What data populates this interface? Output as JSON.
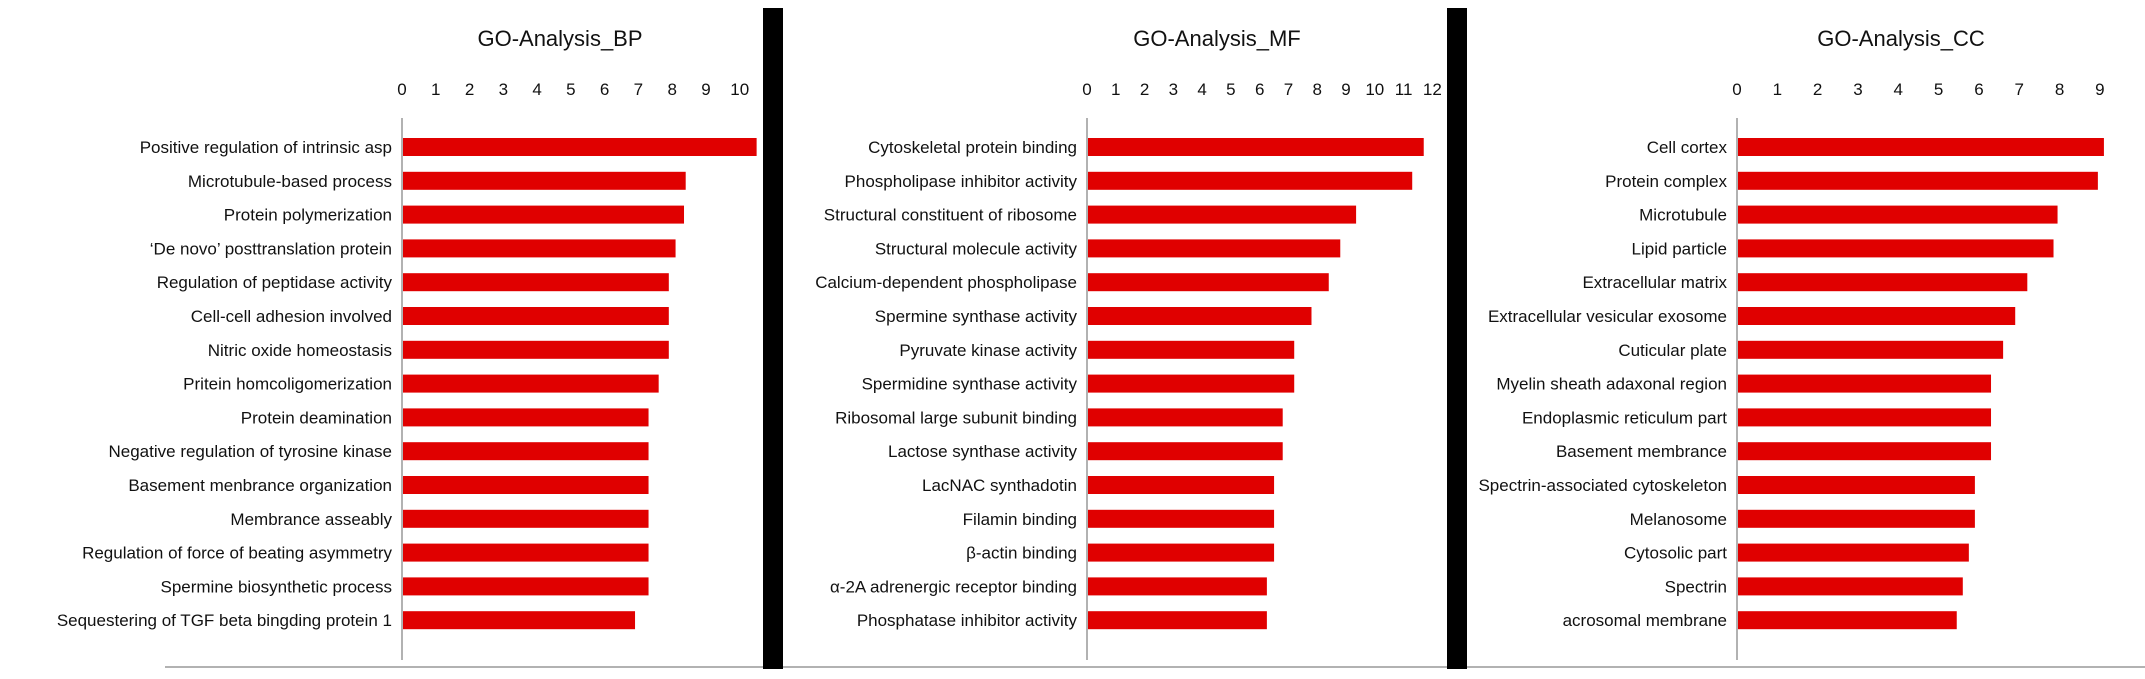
{
  "colors": {
    "bar": "#e00000",
    "divider": "#000000",
    "axis": "#999999",
    "text": "#111111"
  },
  "chart_data": [
    {
      "type": "bar",
      "orientation": "horizontal",
      "title": "GO-Analysis_BP",
      "xlim": [
        0,
        10.6
      ],
      "ticks": [
        "0",
        "1",
        "2",
        "3",
        "4",
        "5",
        "6",
        "7",
        "8",
        "9",
        "10"
      ],
      "tick_values": [
        0,
        1,
        2,
        3,
        4,
        5,
        6,
        7,
        8,
        9,
        10
      ],
      "categories": [
        "Positive regulation of intrinsic asp",
        "Microtubule-based process",
        "Protein polymerization",
        "‘De novo’ posttranslation protein",
        "Regulation of peptidase activity",
        "Cell-cell adhesion involved",
        "Nitric oxide homeostasis",
        "Pritein homcoligomerization",
        "Protein deamination",
        "Negative regulation of tyrosine kinase",
        "Basement menbrance organization",
        "Membrance asseably",
        "Regulation of force of beating asymmetry",
        "Spermine biosynthetic process",
        "Sequestering of TGF beta bingding protein 1"
      ],
      "values": [
        10.5,
        8.4,
        8.35,
        8.1,
        7.9,
        7.9,
        7.9,
        7.6,
        7.3,
        7.3,
        7.3,
        7.3,
        7.3,
        7.3,
        6.9
      ]
    },
    {
      "type": "bar",
      "orientation": "horizontal",
      "title": "GO-Analysis_MF",
      "xlim": [
        0,
        12.3
      ],
      "ticks": [
        "0",
        "1",
        "2",
        "3",
        "4",
        "5",
        "6",
        "7",
        "8",
        "9",
        "10",
        "11",
        "12"
      ],
      "tick_values": [
        0,
        1,
        2,
        3,
        4,
        5,
        6,
        7,
        8,
        9,
        10,
        11,
        12
      ],
      "categories": [
        "Cytoskeletal protein binding",
        "Phospholipase inhibitor activity",
        "Structural constituent of ribosome",
        "Structural molecule activity",
        "Calcium-dependent phospholipase",
        "Spermine synthase activity",
        "Pyruvate kinase activity",
        "Spermidine synthase activity",
        "Ribosomal large subunit binding",
        "Lactose synthase activity",
        "LacNAC synthadotin",
        "Filamin binding",
        "β-actin binding",
        "α-2A adrenergic receptor binding",
        "Phosphatase inhibitor activity"
      ],
      "values": [
        11.7,
        11.3,
        9.35,
        8.8,
        8.4,
        7.8,
        7.2,
        7.2,
        6.8,
        6.8,
        6.5,
        6.5,
        6.5,
        6.25,
        6.25
      ]
    },
    {
      "type": "bar",
      "orientation": "horizontal",
      "title": "GO-Analysis_CC",
      "xlim": [
        0,
        9.35
      ],
      "ticks": [
        "0",
        "1",
        "2",
        "3",
        "4",
        "5",
        "6",
        "7",
        "8",
        "9"
      ],
      "tick_values": [
        0,
        1,
        2,
        3,
        4,
        5,
        6,
        7,
        8,
        9
      ],
      "categories": [
        "Cell cortex",
        "Protein complex",
        "Microtubule",
        "Lipid particle",
        "Extracellular matrix",
        "Extracellular vesicular exosome",
        "Cuticular plate",
        "Myelin sheath adaxonal region",
        "Endoplasmic reticulum part",
        "Basement membrance",
        "Spectrin-associated cytoskeleton",
        "Melanosome",
        "Cytosolic part",
        "Spectrin",
        "acrosomal membrane"
      ],
      "values": [
        9.1,
        8.95,
        7.95,
        7.85,
        7.2,
        6.9,
        6.6,
        6.3,
        6.3,
        6.3,
        5.9,
        5.9,
        5.75,
        5.6,
        5.45
      ]
    }
  ]
}
